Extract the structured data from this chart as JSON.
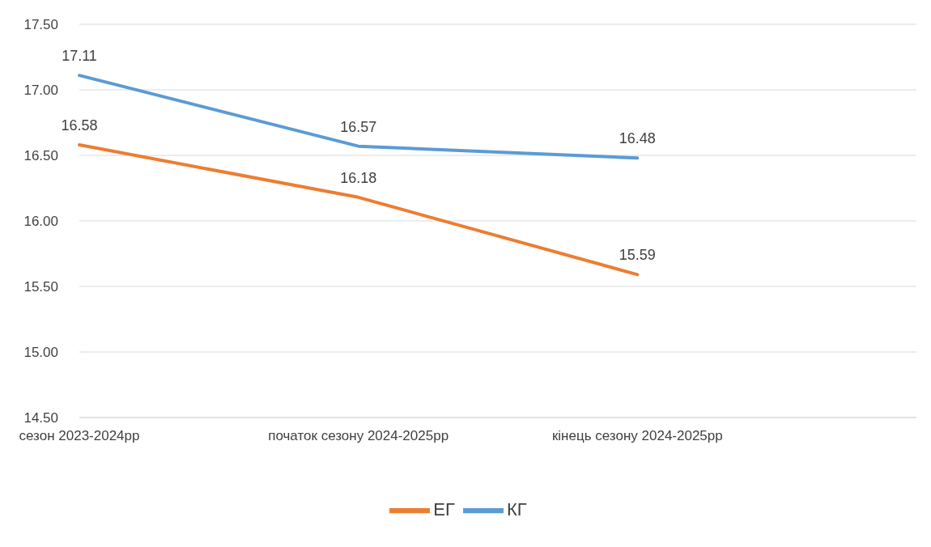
{
  "chart_data": {
    "type": "line",
    "categories": [
      "сезон 2023-2024рр",
      "початок сезону 2024-2025рр",
      "кінець сезону 2024-2025рр",
      null
    ],
    "series": [
      {
        "name": "КГ",
        "color": "#5b9bd5",
        "values": [
          17.11,
          16.57,
          16.48,
          null
        ]
      },
      {
        "name": "ЕГ",
        "color": "#ed7d31",
        "values": [
          16.58,
          16.18,
          15.59,
          null
        ]
      }
    ],
    "ylim": [
      14.5,
      17.5
    ],
    "yticks": [
      {
        "value": 14.5,
        "label": "14.50"
      },
      {
        "value": 15,
        "label": "15.00"
      },
      {
        "value": 15.5,
        "label": "15.50"
      },
      {
        "value": 16,
        "label": "16.00"
      },
      {
        "value": 16.5,
        "label": "16.50"
      },
      {
        "value": 17,
        "label": "17.00"
      },
      {
        "value": 17.5,
        "label": "17.50"
      }
    ],
    "grid": "y",
    "legend": "bottom",
    "data_labels": true,
    "marker": "none",
    "line_style": "solid"
  }
}
